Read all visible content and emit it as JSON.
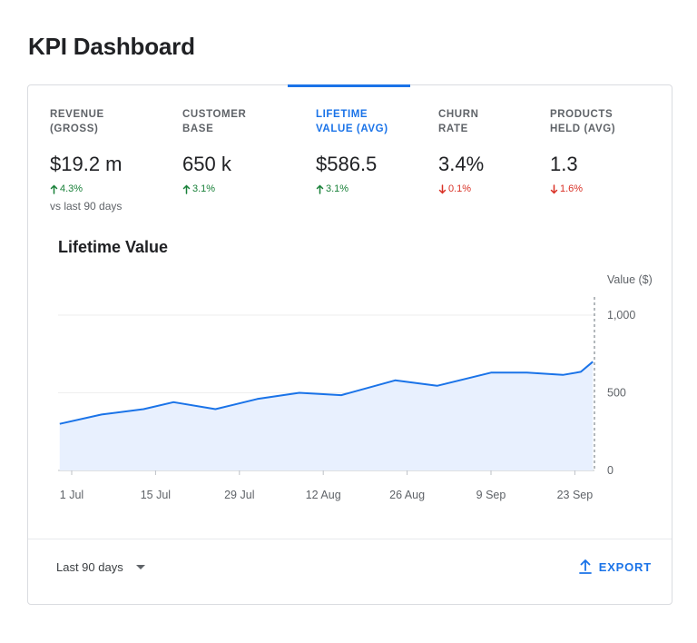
{
  "page": {
    "title": "KPI Dashboard"
  },
  "kpis": [
    {
      "label": "REVENUE\n(GROSS)",
      "value": "$19.2 m",
      "delta": "4.3%",
      "direction": "up",
      "active": false
    },
    {
      "label": "CUSTOMER\nBASE",
      "value": "650 k",
      "delta": "3.1%",
      "direction": "up",
      "active": false
    },
    {
      "label": "LIFETIME\nVALUE (AVG)",
      "value": "$586.5",
      "delta": "3.1%",
      "direction": "up",
      "active": true
    },
    {
      "label": "CHURN\nRATE",
      "value": "3.4%",
      "delta": "0.1%",
      "direction": "down",
      "active": false
    },
    {
      "label": "PRODUCTS\nHELD (AVG)",
      "value": "1.3",
      "delta": "1.6%",
      "direction": "down",
      "active": false
    }
  ],
  "comparison": "vs last 90 days",
  "colors": {
    "accent": "#1a73e8",
    "positive": "#188038",
    "negative": "#d93025",
    "area_fill": "#e8f0fe"
  },
  "chart_data": {
    "type": "area",
    "title": "Lifetime Value",
    "ylabel": "Value ($)",
    "ylim": [
      0,
      1000
    ],
    "yticks": [
      0,
      500,
      1000
    ],
    "ytick_labels": [
      "0",
      "500",
      "1,000"
    ],
    "xtick_labels": [
      "1 Jul",
      "15 Jul",
      "29 Jul",
      "12 Aug",
      "26 Aug",
      "9 Sep",
      "23 Sep"
    ],
    "xtick_days": [
      0,
      14,
      28,
      42,
      56,
      70,
      84
    ],
    "grid": true,
    "series": [
      {
        "x_days": [
          -2,
          5,
          12,
          17,
          24,
          31,
          38,
          45,
          54,
          61,
          70,
          76,
          82,
          85,
          87
        ],
        "values": [
          300,
          360,
          395,
          440,
          395,
          460,
          500,
          485,
          580,
          545,
          630,
          630,
          615,
          635,
          700
        ]
      }
    ]
  },
  "footer": {
    "range_label": "Last 90 days",
    "export_label": "EXPORT"
  }
}
